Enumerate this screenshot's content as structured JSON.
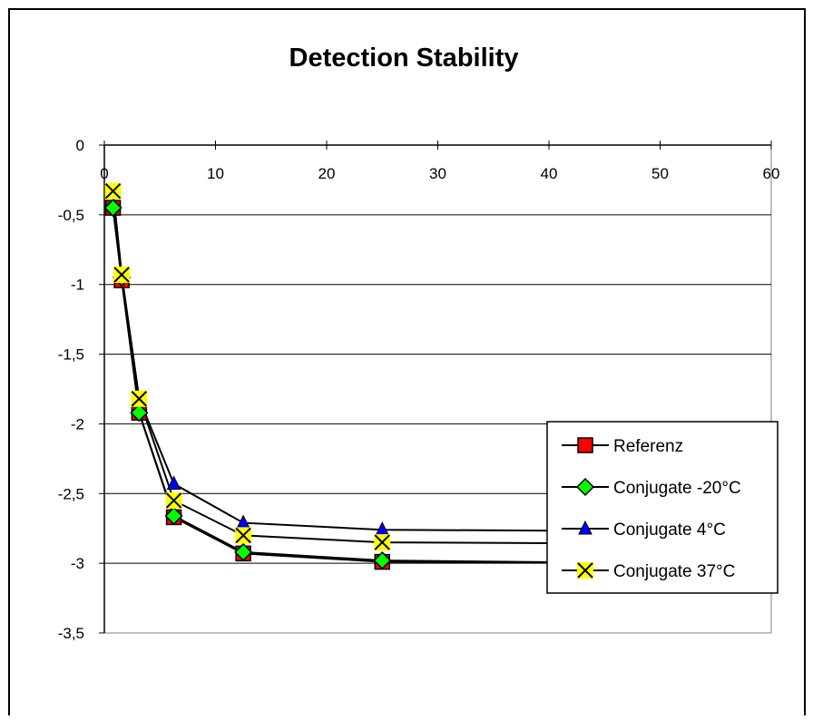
{
  "chart_data": {
    "type": "line",
    "title": "Detection Stability",
    "xlabel": "",
    "ylabel": "",
    "xlim": [
      0,
      60
    ],
    "ylim": [
      -3.5,
      0
    ],
    "x_ticks": [
      0,
      10,
      20,
      30,
      40,
      50,
      60
    ],
    "y_ticks": [
      0,
      -0.5,
      -1,
      -1.5,
      -2,
      -2.5,
      -3,
      -3.5
    ],
    "x_tick_labels": [
      "0",
      "10",
      "20",
      "30",
      "40",
      "50",
      "60"
    ],
    "y_tick_labels": [
      "0",
      "-0,5",
      "-1",
      "-1,5",
      "-2",
      "-2,5",
      "-3",
      "-3,5"
    ],
    "grid": "horizontal major gridlines",
    "legend_position": "right",
    "series": [
      {
        "name": "Referenz",
        "marker": "square",
        "color": "#ff0000",
        "x": [
          0.78,
          1.56,
          3.13,
          6.25,
          12.5,
          25,
          50
        ],
        "y": [
          -0.45,
          -0.97,
          -1.92,
          -2.67,
          -2.93,
          -2.99,
          -3.0
        ]
      },
      {
        "name": "Conjugate -20°C",
        "marker": "diamond",
        "color": "#00ff00",
        "x": [
          0.78,
          1.56,
          3.13,
          6.25,
          12.5,
          25,
          50
        ],
        "y": [
          -0.45,
          -0.95,
          -1.92,
          -2.66,
          -2.92,
          -2.98,
          -3.0
        ]
      },
      {
        "name": "Conjugate 4°C",
        "marker": "triangle",
        "color": "#0000ff",
        "x": [
          0.78,
          1.56,
          3.13,
          6.25,
          12.5,
          25,
          50
        ],
        "y": [
          -0.33,
          -0.93,
          -1.82,
          -2.43,
          -2.71,
          -2.76,
          -2.77
        ]
      },
      {
        "name": "Conjugate 37°C",
        "marker": "x",
        "color": "#ffff00",
        "x": [
          0.78,
          1.56,
          3.13,
          6.25,
          12.5,
          25,
          50
        ],
        "y": [
          -0.33,
          -0.93,
          -1.82,
          -2.55,
          -2.8,
          -2.85,
          -2.86
        ]
      }
    ]
  }
}
